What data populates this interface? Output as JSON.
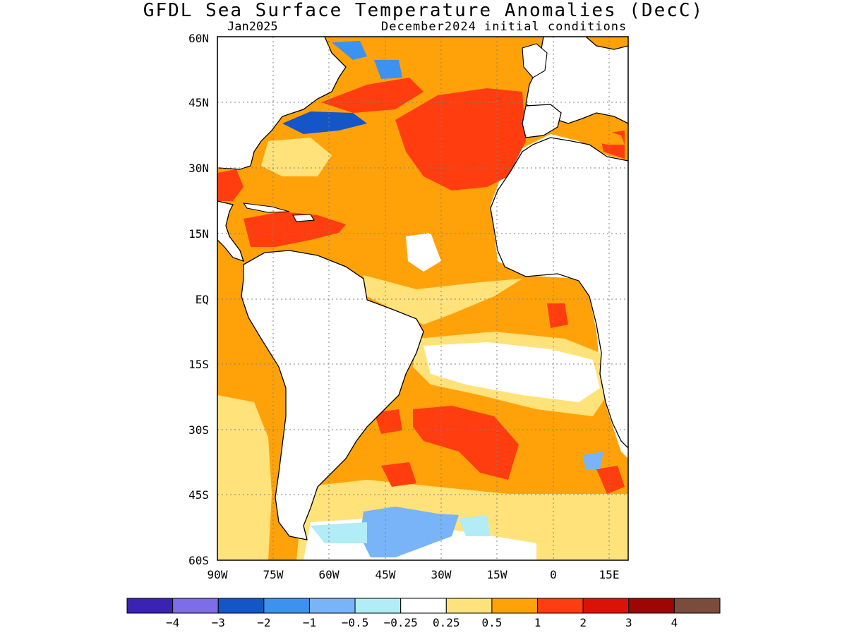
{
  "title": "GFDL Sea Surface Temperature Anomalies (DecC)",
  "subtitle_left": "Jan2025",
  "subtitle_right": "December2024 initial conditions",
  "map": {
    "region": "Atlantic Ocean",
    "lon_range": [
      -90,
      20
    ],
    "lat_range": [
      -60,
      60
    ],
    "lat_ticks": [
      "60N",
      "45N",
      "30N",
      "15N",
      "EQ",
      "15S",
      "30S",
      "45S",
      "60S"
    ],
    "lon_ticks": [
      "90W",
      "75W",
      "60W",
      "45W",
      "30W",
      "15W",
      "0",
      "15E"
    ],
    "grid": "dotted"
  },
  "colorbar": {
    "colors": [
      "#3a22b4",
      "#7e6de8",
      "#1456c7",
      "#3c92f0",
      "#78b4f7",
      "#b2ecf6",
      "#ffffff",
      "#ffe27a",
      "#ffa20a",
      "#ff3d0e",
      "#dc1209",
      "#a00505",
      "#7a4c3c"
    ],
    "labels": [
      "−4",
      "−3",
      "−2",
      "−1",
      "−0.5",
      "−0.25",
      "0.25",
      "0.5",
      "1",
      "2",
      "3",
      "4"
    ]
  }
}
